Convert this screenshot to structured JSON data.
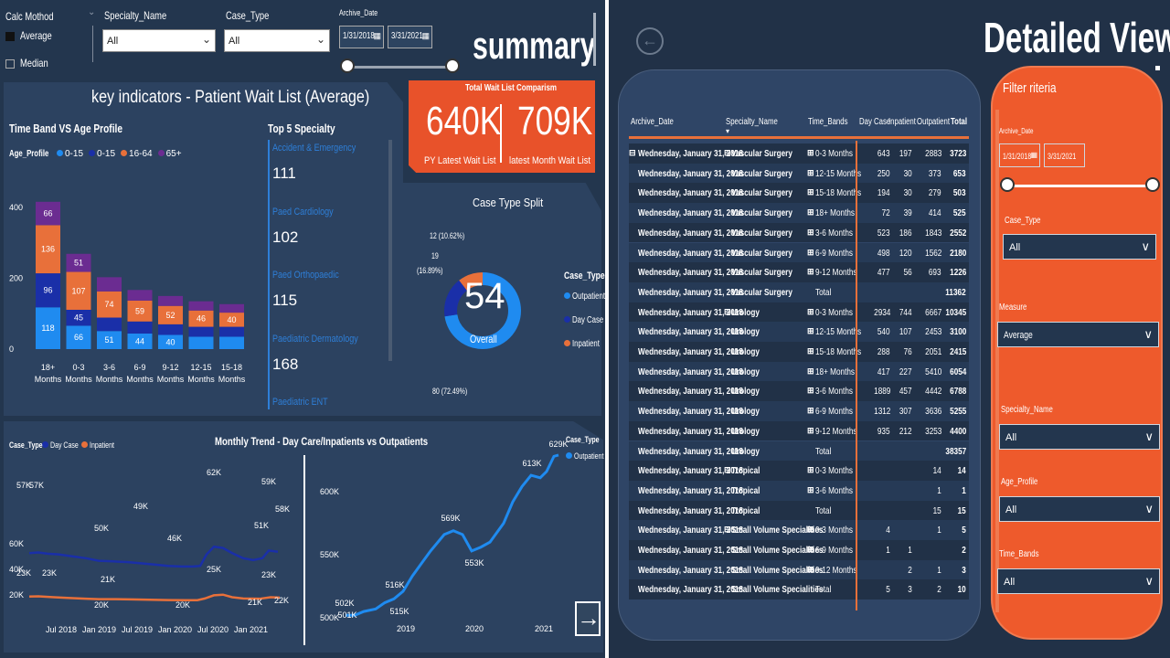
{
  "filters": {
    "calc_method": {
      "label": "Calc Mothod",
      "options": [
        "Average",
        "Median"
      ]
    },
    "specialty": {
      "label": "Specialty_Name",
      "value": "All"
    },
    "case_type": {
      "label": "Case_Type",
      "value": "All"
    },
    "archive_date": {
      "label": "Archive_Date",
      "from": "1/31/2018",
      "to": "3/31/2021"
    }
  },
  "summary_title": "summary",
  "key_indicators_title": "key indicators - Patient Wait List (Average)",
  "comparison": {
    "title": "Total Wait List Comparism",
    "py_value": "640K",
    "py_label": "PY Latest Wait List",
    "latest_value": "709K",
    "latest_label": "latest Month Wait List"
  },
  "top5": {
    "title": "Top 5 Specialty",
    "items": [
      {
        "name": "Accident & Emergency",
        "value": "111"
      },
      {
        "name": "Paed Cardiology",
        "value": "102"
      },
      {
        "name": "Paed Orthopaedic",
        "value": "115"
      },
      {
        "name": "Paediatric Dermatology",
        "value": "168"
      },
      {
        "name": "Paediatric ENT",
        "value": ""
      }
    ]
  },
  "donut": {
    "title": "Case Type Split",
    "center_value": "54",
    "center_label": "Overall",
    "labels": {
      "top": "12 (10.62%)",
      "left_a": "19",
      "left_b": "(16.89%)",
      "bottom": "80 (72.49%)"
    },
    "legend_title": "Case_Type",
    "legend": [
      {
        "name": "Outpatient",
        "color": "#1f8bf0"
      },
      {
        "name": "Day Case",
        "color": "#1a2fa8"
      },
      {
        "name": "Inpatient",
        "color": "#e8703a"
      }
    ]
  },
  "chart_data": [
    {
      "type": "bar",
      "title": "Time Band VS Age Profile",
      "legend_title": "Age_Profile",
      "categories": [
        "18+ Months",
        "0-3 Months",
        "3-6 Months",
        "6-9 Months",
        "9-12 Months",
        "12-15 Months",
        "15-18 Months"
      ],
      "yticks": [
        "400",
        "200",
        "0"
      ],
      "ylim": [
        0,
        400
      ],
      "series": [
        {
          "name": "0-15",
          "color": "#1f8bf0",
          "values": [
            118,
            66,
            51,
            44,
            40,
            35,
            35
          ]
        },
        {
          "name": "0-15",
          "color": "#1a2fa8",
          "values": [
            96,
            45,
            38,
            34,
            30,
            28,
            28
          ]
        },
        {
          "name": "16-64",
          "color": "#e8703a",
          "values": [
            136,
            107,
            74,
            59,
            52,
            46,
            40
          ]
        },
        {
          "name": "65+",
          "color": "#6b2c91",
          "values": [
            66,
            51,
            40,
            30,
            28,
            26,
            24
          ]
        }
      ],
      "data_labels": [
        [
          "118",
          "66",
          "51",
          "44",
          "40",
          "",
          ""
        ],
        [
          "96",
          "45",
          "",
          "",
          "",
          "",
          ""
        ],
        [
          "136",
          "107",
          "74",
          "59",
          "52",
          "46",
          "40"
        ],
        [
          "66",
          "51",
          "",
          "",
          "",
          "",
          ""
        ]
      ]
    },
    {
      "type": "line",
      "title": "Monthly Trend - Day Care/Inpatients vs  Outpatients",
      "legend_title": "Case_Type",
      "x_ticks": [
        "Jul 2018",
        "Jan 2019",
        "Jul 2019",
        "Jan 2020",
        "Jul 2020",
        "Jan 2021"
      ],
      "y_ticks": [
        "60K",
        "40K",
        "20K"
      ],
      "series": [
        {
          "name": "Day Case",
          "color": "#1a2fa8",
          "labels": [
            "57K",
            "57K",
            "50K",
            "49K",
            "46K",
            "62K",
            "51K",
            "59K",
            "58K"
          ]
        },
        {
          "name": "Inpatient",
          "color": "#e8703a",
          "labels": [
            "23K",
            "23K",
            "21K",
            "20K",
            "20K",
            "25K",
            "21K",
            "23K",
            "22K"
          ]
        }
      ]
    },
    {
      "type": "line",
      "legend_title": "Case_Type",
      "x_ticks": [
        "2019",
        "2020",
        "2021"
      ],
      "y_ticks": [
        "600K",
        "550K",
        "500K"
      ],
      "series": [
        {
          "name": "Outpatient",
          "color": "#1f8bf0",
          "labels": [
            "502K",
            "501K",
            "516K",
            "515K",
            "569K",
            "553K",
            "613K",
            "629K"
          ]
        }
      ]
    }
  ],
  "detailed": {
    "title": "Detailed View",
    "columns": [
      "Archive_Date",
      "Specialty_Name",
      "Time_Bands",
      "Day Case",
      "Inpatient",
      "Outpatient",
      "Total"
    ],
    "rows": [
      [
        "Wednesday, January 31, 2018",
        "Vascular Surgery",
        "0-3 Months",
        "643",
        "197",
        "2883",
        "3723"
      ],
      [
        "Wednesday, January 31, 2018",
        "Vascular Surgery",
        "12-15 Months",
        "250",
        "30",
        "373",
        "653"
      ],
      [
        "Wednesday, January 31, 2018",
        "Vascular Surgery",
        "15-18 Months",
        "194",
        "30",
        "279",
        "503"
      ],
      [
        "Wednesday, January 31, 2018",
        "Vascular Surgery",
        "18+ Months",
        "72",
        "39",
        "414",
        "525"
      ],
      [
        "Wednesday, January 31, 2018",
        "Vascular Surgery",
        "3-6 Months",
        "523",
        "186",
        "1843",
        "2552"
      ],
      [
        "Wednesday, January 31, 2018",
        "Vascular Surgery",
        "6-9 Months",
        "498",
        "120",
        "1562",
        "2180"
      ],
      [
        "Wednesday, January 31, 2018",
        "Vascular Surgery",
        "9-12 Months",
        "477",
        "56",
        "693",
        "1226"
      ],
      [
        "Wednesday, January 31, 2018",
        "Vascular Surgery",
        "Total",
        "",
        "",
        "",
        "11362"
      ],
      [
        "Wednesday, January 31, 2018",
        "Urology",
        "0-3 Months",
        "2934",
        "744",
        "6667",
        "10345"
      ],
      [
        "Wednesday, January 31, 2018",
        "Urology",
        "12-15 Months",
        "540",
        "107",
        "2453",
        "3100"
      ],
      [
        "Wednesday, January 31, 2018",
        "Urology",
        "15-18 Months",
        "288",
        "76",
        "2051",
        "2415"
      ],
      [
        "Wednesday, January 31, 2018",
        "Urology",
        "18+ Months",
        "417",
        "227",
        "5410",
        "6054"
      ],
      [
        "Wednesday, January 31, 2018",
        "Urology",
        "3-6 Months",
        "1889",
        "457",
        "4442",
        "6788"
      ],
      [
        "Wednesday, January 31, 2018",
        "Urology",
        "6-9 Months",
        "1312",
        "307",
        "3636",
        "5255"
      ],
      [
        "Wednesday, January 31, 2018",
        "Urology",
        "9-12 Months",
        "935",
        "212",
        "3253",
        "4400"
      ],
      [
        "Wednesday, January 31, 2018",
        "Urology",
        "Total",
        "",
        "",
        "",
        "38357"
      ],
      [
        "Wednesday, January 31, 2018",
        "Tropical",
        "0-3 Months",
        "",
        "",
        "14",
        "14"
      ],
      [
        "Wednesday, January 31, 2018",
        "Tropical",
        "3-6 Months",
        "",
        "",
        "1",
        "1"
      ],
      [
        "Wednesday, January 31, 2018",
        "Tropical",
        "Total",
        "",
        "",
        "15",
        "15"
      ],
      [
        "Wednesday, January 31, 2018",
        "Small Volume Specialities",
        "0-3 Months",
        "4",
        "",
        "1",
        "5"
      ],
      [
        "Wednesday, January 31, 2018",
        "Small Volume Specialities",
        "6-9 Months",
        "1",
        "1",
        "",
        "2"
      ],
      [
        "Wednesday, January 31, 2018",
        "Small Volume Specialities",
        "9-12 Months",
        "",
        "2",
        "1",
        "3"
      ],
      [
        "Wednesday, January 31, 2018",
        "Small Volume Specialities",
        "Total",
        "5",
        "3",
        "2",
        "10"
      ]
    ]
  },
  "right_filters": {
    "title": "Filter riteria",
    "archive_label": "Archive_Date",
    "from": "1/31/2018",
    "to": "3/31/2021",
    "case_type": {
      "label": "Case_Type",
      "value": "All"
    },
    "measure": {
      "label": "Measure",
      "value": "Average"
    },
    "specialty": {
      "label": "Specialty_Name",
      "value": "All"
    },
    "age_profile": {
      "label": "Age_Profile",
      "value": "All"
    },
    "time_bands": {
      "label": "Time_Bands",
      "value": "All"
    }
  }
}
